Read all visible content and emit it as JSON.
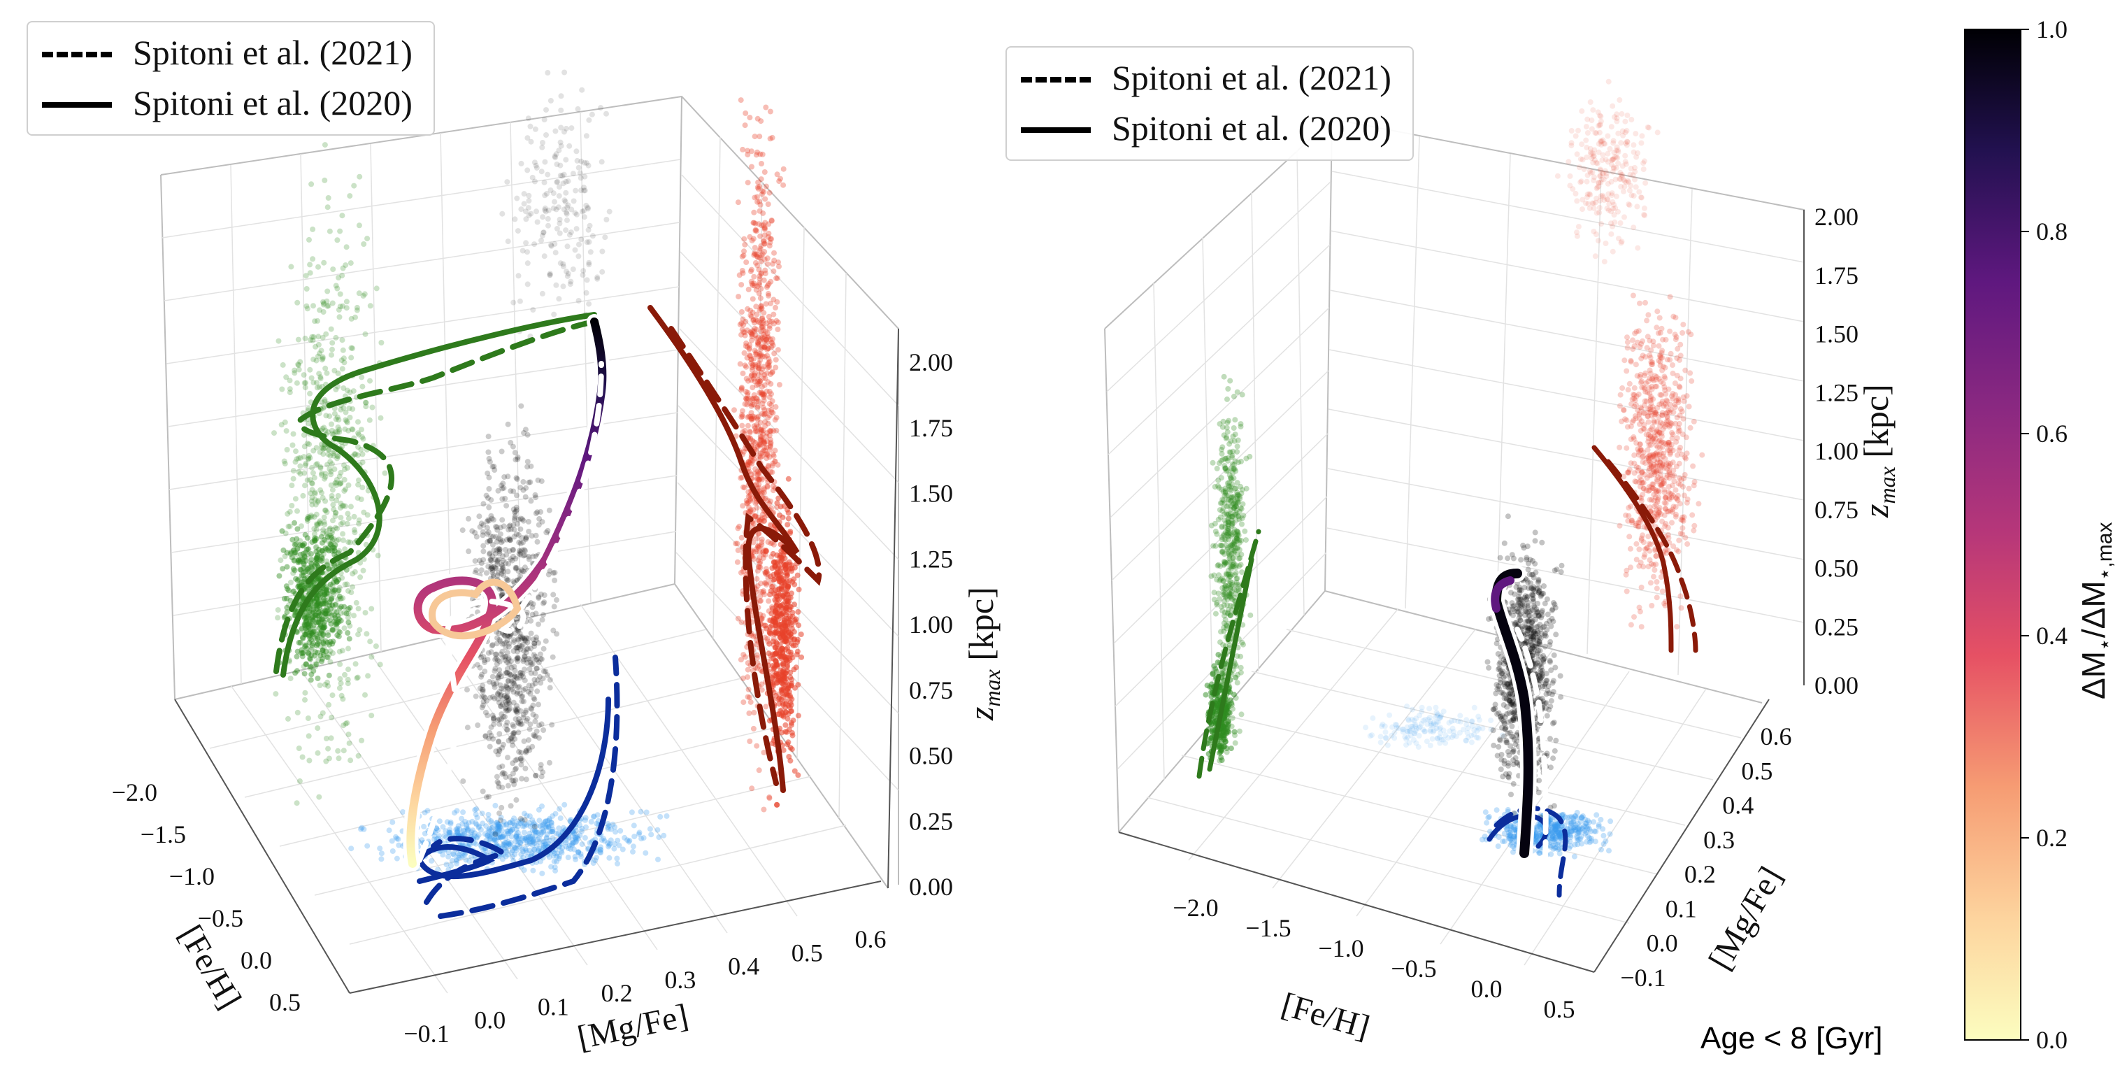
{
  "legend": {
    "dashed_label": "Spitoni et al. (2021)",
    "solid_label": "Spitoni et al. (2020)"
  },
  "panel_note": "Age < 8 [Gyr]",
  "colors": {
    "proj_feh_mgfe": "#3a9bf0",
    "proj_feh_z": "#2e8b1f",
    "proj_mgfe_z": "#e8412a",
    "main_cloud": "#111111",
    "curve_blue": "#0b2d9c",
    "curve_green": "#2e7a1c",
    "curve_red": "#8a1a08"
  },
  "chart_data": [
    {
      "type": "scatter",
      "projection": "3d",
      "xlabel": "[Fe/H]",
      "ylabel": "[Mg/Fe]",
      "zlabel": "z_max [kpc]",
      "x_ticks": [
        "−2.0",
        "−1.5",
        "−1.0",
        "−0.5",
        "0.0",
        "0.5"
      ],
      "y_ticks": [
        "−0.1",
        "0.0",
        "0.1",
        "0.2",
        "0.3",
        "0.4",
        "0.5",
        "0.6"
      ],
      "z_ticks": [
        "0.00",
        "0.25",
        "0.50",
        "0.75",
        "1.00",
        "1.25",
        "1.50",
        "1.75",
        "2.00"
      ],
      "xlim": [
        -2.3,
        0.6
      ],
      "ylim": [
        -0.15,
        0.65
      ],
      "zlim": [
        0,
        2.05
      ],
      "grid": true,
      "legend_position": "upper-left",
      "series": [
        {
          "style": "solid",
          "points": [
            [
              -0.3,
              0.0,
              0.02
            ],
            [
              -0.4,
              0.02,
              0.08
            ],
            [
              -0.5,
              0.05,
              0.2
            ],
            [
              -0.6,
              0.12,
              0.5
            ],
            [
              -0.75,
              0.2,
              0.9
            ],
            [
              -0.95,
              0.27,
              1.2
            ],
            [
              -1.05,
              0.33,
              1.5
            ],
            [
              -1.1,
              0.4,
              1.85
            ],
            [
              -1.15,
              0.46,
              2.0
            ]
          ]
        },
        {
          "style": "dashed",
          "points": [
            [
              -0.25,
              -0.02,
              0.02
            ],
            [
              -0.35,
              0.0,
              0.1
            ],
            [
              -0.45,
              0.04,
              0.25
            ],
            [
              -0.55,
              0.1,
              0.55
            ],
            [
              -0.7,
              0.18,
              0.9
            ],
            [
              -0.9,
              0.25,
              1.2
            ],
            [
              -1.0,
              0.3,
              1.45
            ],
            [
              -1.05,
              0.37,
              1.75
            ],
            [
              -1.1,
              0.42,
              1.9
            ]
          ]
        },
        {
          "style": "dashed",
          "points": [
            [
              0.4,
              -0.05,
              0.0
            ],
            [
              0.2,
              0.02,
              0.0
            ],
            [
              0.0,
              0.1,
              0.0
            ],
            [
              -0.3,
              0.2,
              0.0
            ],
            [
              -0.6,
              0.3,
              0.0
            ],
            [
              -0.9,
              0.36,
              0.0
            ]
          ]
        }
      ]
    },
    {
      "type": "scatter",
      "projection": "3d",
      "xlabel": "[Fe/H]",
      "ylabel": "[Mg/Fe]",
      "zlabel": "z_max [kpc]",
      "x_ticks": [
        "−2.0",
        "−1.5",
        "−1.0",
        "−0.5",
        "0.0",
        "0.5"
      ],
      "y_ticks": [
        "−0.1",
        "0.0",
        "0.1",
        "0.2",
        "0.3",
        "0.4",
        "0.5",
        "0.6"
      ],
      "z_ticks": [
        "0.00",
        "0.25",
        "0.50",
        "0.75",
        "1.00",
        "1.25",
        "1.50",
        "1.75",
        "2.00"
      ],
      "xlim": [
        -2.3,
        0.6
      ],
      "ylim": [
        -0.15,
        0.65
      ],
      "zlim": [
        0,
        2.05
      ],
      "grid": true,
      "legend_position": "upper-left",
      "series": [
        {
          "style": "solid",
          "points": [
            [
              0.15,
              -0.02,
              0.02
            ],
            [
              0.1,
              0.0,
              0.15
            ],
            [
              0.05,
              0.02,
              0.3
            ],
            [
              0.0,
              0.03,
              0.5
            ],
            [
              -0.05,
              0.04,
              0.62
            ]
          ]
        },
        {
          "style": "dashed",
          "points": [
            [
              0.3,
              -0.04,
              0.02
            ],
            [
              0.25,
              -0.02,
              0.15
            ],
            [
              0.2,
              0.0,
              0.3
            ],
            [
              0.15,
              0.01,
              0.5
            ]
          ]
        }
      ]
    }
  ],
  "colorbar": {
    "label": "ΔM⋆/ΔM⋆,max",
    "ticks": [
      "0.0",
      "0.2",
      "0.4",
      "0.6",
      "0.8",
      "1.0"
    ],
    "range": [
      0.0,
      1.0
    ],
    "colormap": "magma_r"
  }
}
